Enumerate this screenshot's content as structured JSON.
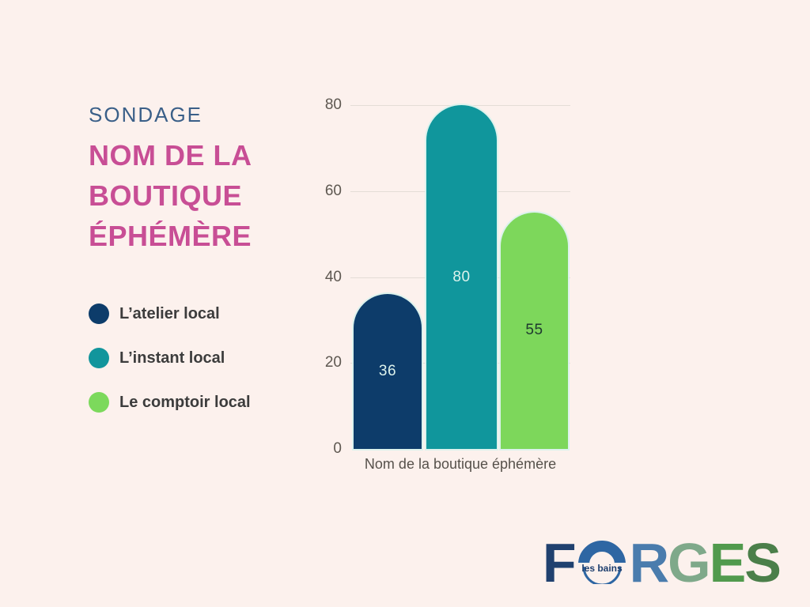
{
  "page": {
    "background_color": "#fcf1ed"
  },
  "header": {
    "eyebrow": "SONDAGE",
    "eyebrow_color": "#3a5f88",
    "title_lines": [
      "NOM DE LA",
      "BOUTIQUE",
      "ÉPHÉMÈRE"
    ],
    "title_color": "#c84e95"
  },
  "legend": {
    "items": [
      {
        "label": "L’atelier local",
        "color": "#0d3c6a"
      },
      {
        "label": "L’instant local",
        "color": "#12959c"
      },
      {
        "label": "Le comptoir local",
        "color": "#7cd95c"
      }
    ]
  },
  "chart_data": {
    "type": "bar",
    "categories": [
      "L’atelier local",
      "L’instant local",
      "Le comptoir local"
    ],
    "values": [
      36,
      80,
      55
    ],
    "bar_colors": [
      "#0d3c6a",
      "#10969c",
      "#7dd75b"
    ],
    "value_label_colors": [
      "#dcf2ec",
      "#dcf2ec",
      "#1e392f"
    ],
    "title": "",
    "xlabel": "Nom de la boutique éphémère",
    "ylabel": "",
    "ylim": [
      0,
      80
    ],
    "yticks": [
      0,
      20,
      40,
      60,
      80
    ],
    "grid": true,
    "legend_position": "left",
    "bar_corner": "rounded-top"
  },
  "logo": {
    "badge_text": "les bains",
    "badge_arc_color": "#2e66a3",
    "badge_text_color": "#1d3e6e",
    "letters": [
      {
        "char": "F",
        "color": "#20416f"
      },
      {
        "char": "O",
        "color": "#2e66a3",
        "special": "badge"
      },
      {
        "char": "R",
        "color": "#4a7cad"
      },
      {
        "char": "G",
        "color": "#7fa98a"
      },
      {
        "char": "E",
        "color": "#519a4d"
      },
      {
        "char": "S",
        "color": "#4b7f4a"
      }
    ]
  }
}
